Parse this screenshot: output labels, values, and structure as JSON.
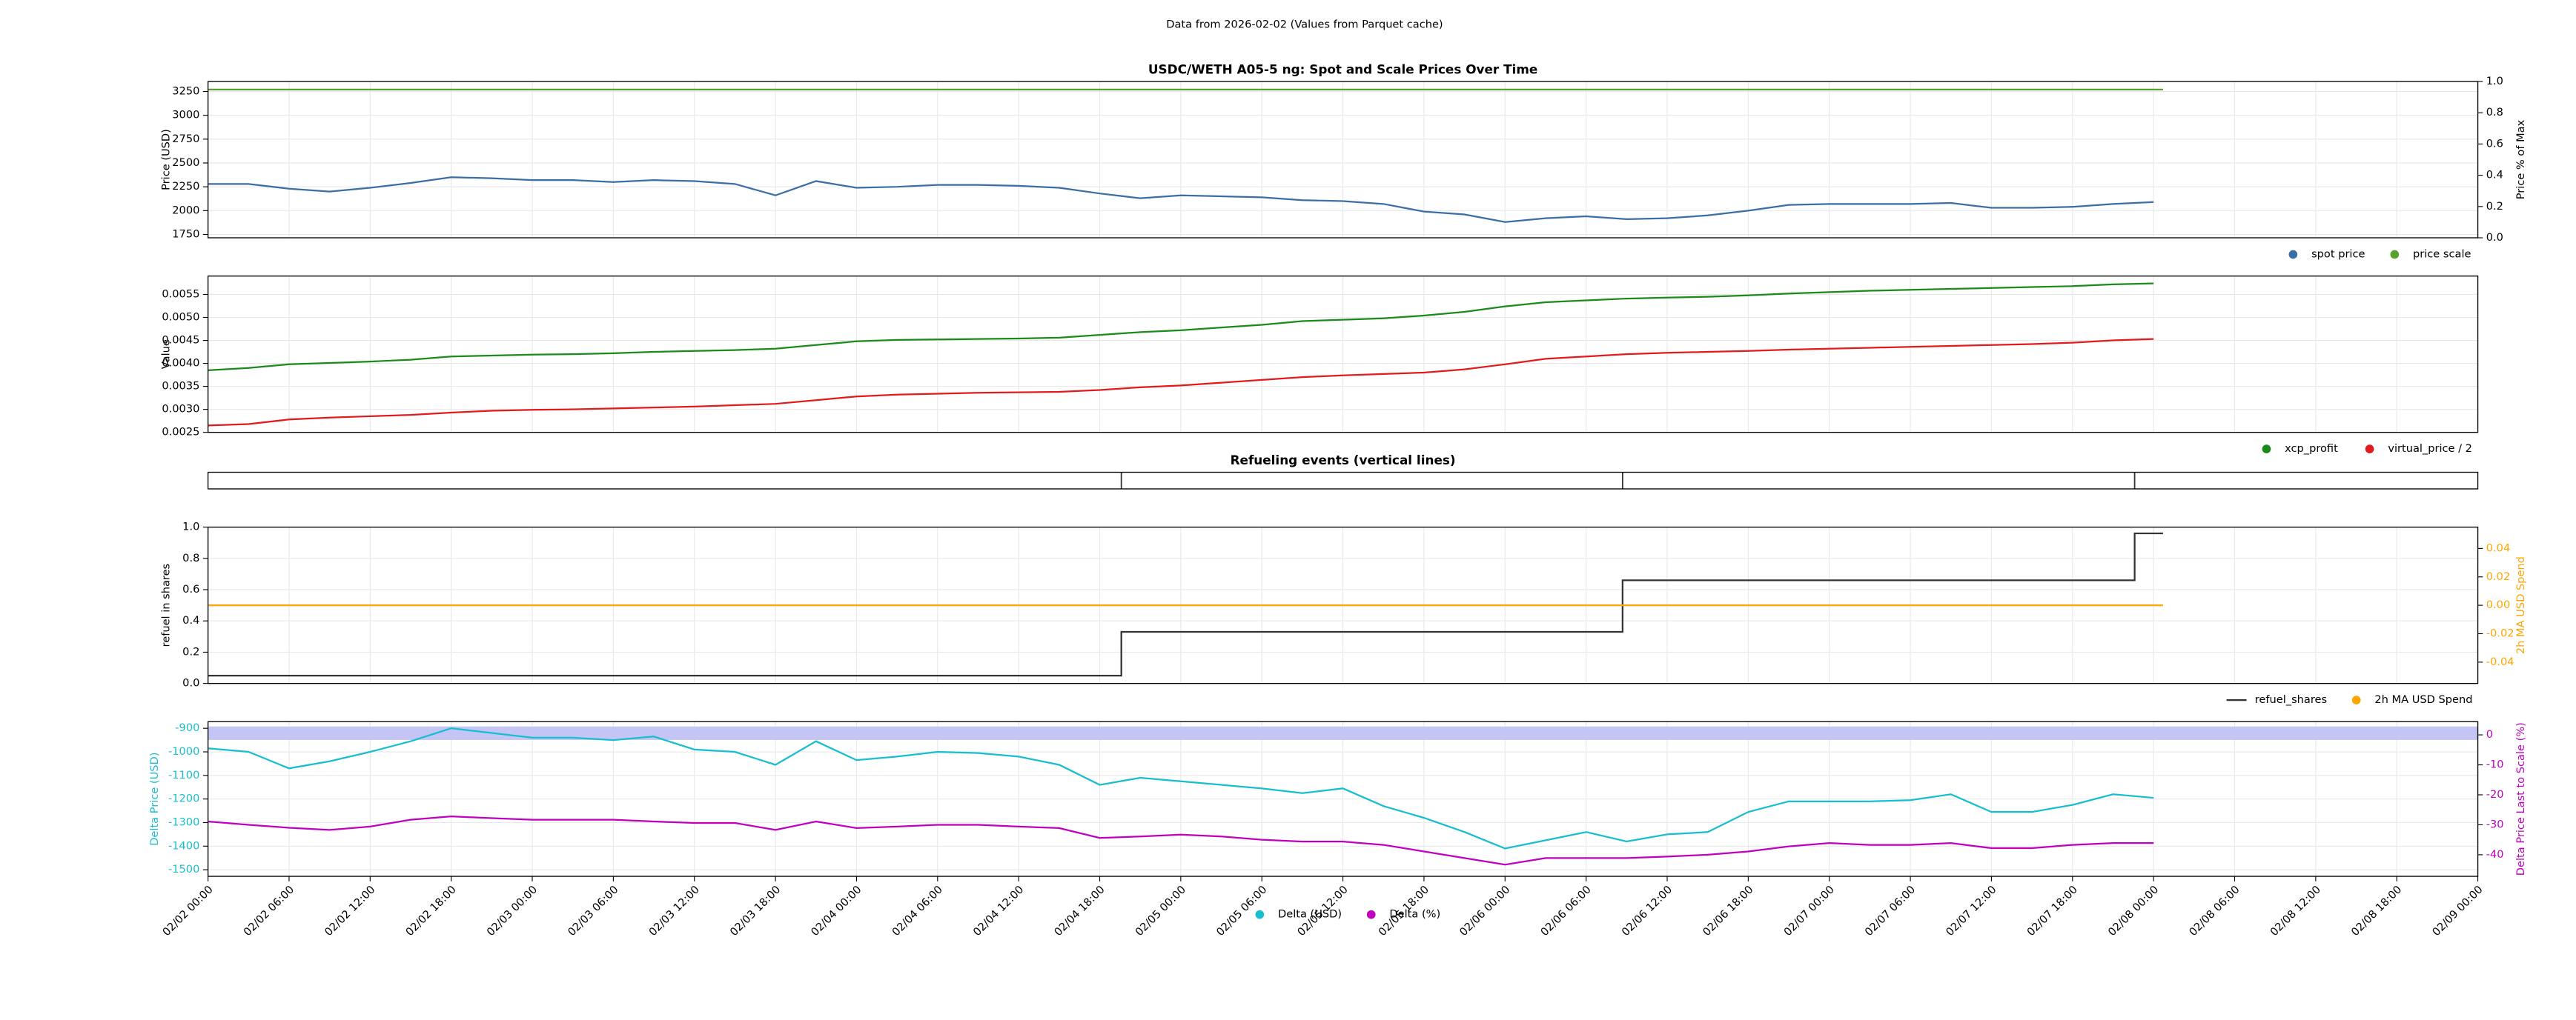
{
  "title": "Data from 2026-02-02 (Values from Parquet cache)",
  "chart_data": [
    {
      "type": "line",
      "title": "USDC/WETH A05-5 ng: Spot and Scale Prices Over Time",
      "ylabel": "Price (USD)",
      "y2label": "Price % of Max",
      "grid": true,
      "ylim": [
        1715,
        3355
      ],
      "yticks": [
        1750,
        2000,
        2250,
        2500,
        2750,
        3000,
        3250
      ],
      "y2lim": [
        0,
        1
      ],
      "y2ticks": [
        {
          "value": 0,
          "label": "0.0"
        },
        0.2,
        0.4,
        0.6,
        0.8,
        {
          "value": 1,
          "label": "1.0"
        }
      ],
      "x": [
        0,
        3,
        6,
        9,
        12,
        15,
        18,
        21,
        24,
        27,
        30,
        33,
        36,
        39,
        42,
        45,
        48,
        51,
        54,
        57,
        60,
        63,
        66,
        69,
        72,
        75,
        78,
        81,
        84,
        87,
        90,
        93,
        96,
        99,
        102,
        105,
        108,
        111,
        114,
        117,
        120,
        123,
        126,
        129,
        132,
        135,
        138,
        141,
        144
      ],
      "series": [
        {
          "name": "spot price",
          "color": "#3a6ea5",
          "values": [
            2280,
            2280,
            2230,
            2200,
            2240,
            2290,
            2350,
            2340,
            2320,
            2320,
            2300,
            2320,
            2310,
            2280,
            2160,
            2310,
            2240,
            2250,
            2270,
            2270,
            2260,
            2240,
            2180,
            2130,
            2160,
            2150,
            2140,
            2110,
            2100,
            2070,
            1990,
            1960,
            1880,
            1920,
            1940,
            1910,
            1920,
            1950,
            2000,
            2060,
            2070,
            2070,
            2070,
            2080,
            2030,
            2030,
            2040,
            2070,
            2090
          ]
        },
        {
          "name": "price scale",
          "color": "#5aa02c",
          "x": [
            0,
            144.7
          ],
          "values": [
            3270,
            3270
          ]
        }
      ]
    },
    {
      "type": "line",
      "ylabel": "Value",
      "grid": true,
      "ylim": [
        0.0025,
        0.0059
      ],
      "yticks": [
        0.0025,
        {
          "value": 0.003,
          "label": "0.0030"
        },
        0.0035,
        {
          "value": 0.004,
          "label": "0.0040"
        },
        0.0045,
        {
          "value": 0.005,
          "label": "0.0050"
        },
        0.0055
      ],
      "x": [
        0,
        3,
        6,
        9,
        12,
        15,
        18,
        21,
        24,
        27,
        30,
        33,
        36,
        39,
        42,
        45,
        48,
        51,
        54,
        57,
        60,
        63,
        66,
        69,
        72,
        75,
        78,
        81,
        84,
        87,
        90,
        93,
        96,
        99,
        102,
        105,
        108,
        111,
        114,
        117,
        120,
        123,
        126,
        129,
        132,
        135,
        138,
        141,
        144
      ],
      "series": [
        {
          "name": "xcp_profit",
          "color": "#1a8a1a",
          "values": [
            0.00385,
            0.0039,
            0.00398,
            0.00401,
            0.00404,
            0.00408,
            0.00415,
            0.00417,
            0.00419,
            0.0042,
            0.00422,
            0.00425,
            0.00427,
            0.00429,
            0.00432,
            0.0044,
            0.00448,
            0.00451,
            0.00452,
            0.00453,
            0.00454,
            0.00456,
            0.00462,
            0.00468,
            0.00472,
            0.00478,
            0.00484,
            0.00492,
            0.00495,
            0.00498,
            0.00504,
            0.00512,
            0.00524,
            0.00533,
            0.00537,
            0.00541,
            0.00543,
            0.00545,
            0.00548,
            0.00552,
            0.00555,
            0.00558,
            0.0056,
            0.00562,
            0.00564,
            0.00566,
            0.00568,
            0.00572,
            0.00574
          ]
        },
        {
          "name": "virtual_price / 2",
          "color": "#e31a1c",
          "values": [
            0.00265,
            0.00268,
            0.00278,
            0.00282,
            0.00285,
            0.00288,
            0.00293,
            0.00297,
            0.00299,
            0.003,
            0.00302,
            0.00304,
            0.00306,
            0.00309,
            0.00312,
            0.0032,
            0.00328,
            0.00332,
            0.00334,
            0.00336,
            0.00337,
            0.00338,
            0.00342,
            0.00348,
            0.00352,
            0.00358,
            0.00364,
            0.0037,
            0.00374,
            0.00377,
            0.0038,
            0.00387,
            0.00398,
            0.0041,
            0.00415,
            0.0042,
            0.00423,
            0.00425,
            0.00427,
            0.0043,
            0.00432,
            0.00434,
            0.00436,
            0.00438,
            0.0044,
            0.00442,
            0.00445,
            0.0045,
            0.00453
          ]
        }
      ]
    },
    {
      "type": "events",
      "title": "Refueling events (vertical lines)",
      "color": "#333333",
      "events": [
        67.6,
        104.7,
        142.6
      ]
    },
    {
      "type": "line",
      "ylabel": "refuel in shares",
      "y2label": "2h MA USD Spend",
      "y2color": "#ffa500",
      "grid": true,
      "ylim": [
        0,
        1
      ],
      "yticks": [
        {
          "value": 0,
          "label": "0.0"
        },
        0.2,
        0.4,
        0.6,
        0.8,
        {
          "value": 1,
          "label": "1.0"
        }
      ],
      "y2lim": [
        -0.055,
        0.055
      ],
      "y2ticks": [
        -0.04,
        -0.02,
        {
          "value": 0,
          "label": "0.00"
        },
        0.02,
        0.04
      ],
      "series": [
        {
          "name": "refuel_shares",
          "color": "#333333",
          "marker": "line",
          "x": [
            0,
            67.6,
            67.6,
            104.7,
            104.7,
            142.6,
            142.6,
            144.7
          ],
          "values": [
            0.05,
            0.05,
            0.33,
            0.33,
            0.66,
            0.66,
            0.96,
            0.96
          ]
        },
        {
          "name": "2h MA USD Spend",
          "color": "#ffa500",
          "axis": "y2",
          "x": [
            0,
            144.7
          ],
          "values": [
            0,
            0
          ]
        }
      ]
    },
    {
      "type": "line",
      "ylabel": "Delta Price (USD)",
      "ycolor": "#17becf",
      "y2label": "Delta Price Last to Scale (%)",
      "y2color": "#c000c0",
      "grid": true,
      "ylim": [
        -1528,
        -872
      ],
      "yticks": [
        -1500,
        -1400,
        -1300,
        -1200,
        -1100,
        -1000,
        -900
      ],
      "y2lim": [
        -47.2,
        4.4
      ],
      "y2ticks": [
        -40,
        -30,
        -20,
        -10,
        0
      ],
      "y2span": [
        -1.7,
        2.8
      ],
      "span_color": "#c5c5f5",
      "xlim": [
        0,
        168
      ],
      "xticks": [
        {
          "value": 0,
          "label": "02/02 00:00"
        },
        {
          "value": 6,
          "label": "02/02 06:00"
        },
        {
          "value": 12,
          "label": "02/02 12:00"
        },
        {
          "value": 18,
          "label": "02/02 18:00"
        },
        {
          "value": 24,
          "label": "02/03 00:00"
        },
        {
          "value": 30,
          "label": "02/03 06:00"
        },
        {
          "value": 36,
          "label": "02/03 12:00"
        },
        {
          "value": 42,
          "label": "02/03 18:00"
        },
        {
          "value": 48,
          "label": "02/04 00:00"
        },
        {
          "value": 54,
          "label": "02/04 06:00"
        },
        {
          "value": 60,
          "label": "02/04 12:00"
        },
        {
          "value": 66,
          "label": "02/04 18:00"
        },
        {
          "value": 72,
          "label": "02/05 00:00"
        },
        {
          "value": 78,
          "label": "02/05 06:00"
        },
        {
          "value": 84,
          "label": "02/05 12:00"
        },
        {
          "value": 90,
          "label": "02/05 18:00"
        },
        {
          "value": 96,
          "label": "02/06 00:00"
        },
        {
          "value": 102,
          "label": "02/06 06:00"
        },
        {
          "value": 108,
          "label": "02/06 12:00"
        },
        {
          "value": 114,
          "label": "02/06 18:00"
        },
        {
          "value": 120,
          "label": "02/07 00:00"
        },
        {
          "value": 126,
          "label": "02/07 06:00"
        },
        {
          "value": 132,
          "label": "02/07 12:00"
        },
        {
          "value": 138,
          "label": "02/07 18:00"
        },
        {
          "value": 144,
          "label": "02/08 00:00"
        },
        {
          "value": 150,
          "label": "02/08 06:00"
        },
        {
          "value": 156,
          "label": "02/08 12:00"
        },
        {
          "value": 162,
          "label": "02/08 18:00"
        },
        {
          "value": 168,
          "label": "02/09 00:00"
        }
      ],
      "x": [
        0,
        3,
        6,
        9,
        12,
        15,
        18,
        21,
        24,
        27,
        30,
        33,
        36,
        39,
        42,
        45,
        48,
        51,
        54,
        57,
        60,
        63,
        66,
        69,
        72,
        75,
        78,
        81,
        84,
        87,
        90,
        93,
        96,
        99,
        102,
        105,
        108,
        111,
        114,
        117,
        120,
        123,
        126,
        129,
        132,
        135,
        138,
        141,
        144
      ],
      "series": [
        {
          "name": "Delta (USD)",
          "color": "#17becf",
          "values": [
            -985,
            -1000,
            -1070,
            -1040,
            -1000,
            -955,
            -900,
            -920,
            -940,
            -940,
            -950,
            -935,
            -990,
            -1000,
            -1055,
            -955,
            -1035,
            -1020,
            -1000,
            -1005,
            -1020,
            -1055,
            -1140,
            -1110,
            -1125,
            -1140,
            -1155,
            -1175,
            -1155,
            -1230,
            -1280,
            -1340,
            -1410,
            -1375,
            -1340,
            -1380,
            -1350,
            -1340,
            -1255,
            -1210,
            -1210,
            -1210,
            -1205,
            -1180,
            -1255,
            -1255,
            -1225,
            -1180,
            -1195
          ]
        },
        {
          "name": "Delta (%)",
          "color": "#c000c0",
          "axis": "y2",
          "values": [
            -28.9,
            -30,
            -31,
            -31.7,
            -30.6,
            -28.3,
            -27.2,
            -27.8,
            -28.3,
            -28.3,
            -28.3,
            -28.9,
            -29.4,
            -29.4,
            -31.7,
            -28.9,
            -31.1,
            -30.6,
            -30,
            -30,
            -30.6,
            -31.1,
            -34.4,
            -33.9,
            -33.3,
            -33.9,
            -35,
            -35.6,
            -35.6,
            -36.7,
            -38.9,
            -41.1,
            -43.3,
            -41.1,
            -41.1,
            -41.1,
            -40.6,
            -40,
            -38.9,
            -37.2,
            -36.1,
            -36.7,
            -36.7,
            -36.1,
            -37.8,
            -37.8,
            -36.7,
            -36.1,
            -36.1
          ]
        }
      ]
    }
  ]
}
